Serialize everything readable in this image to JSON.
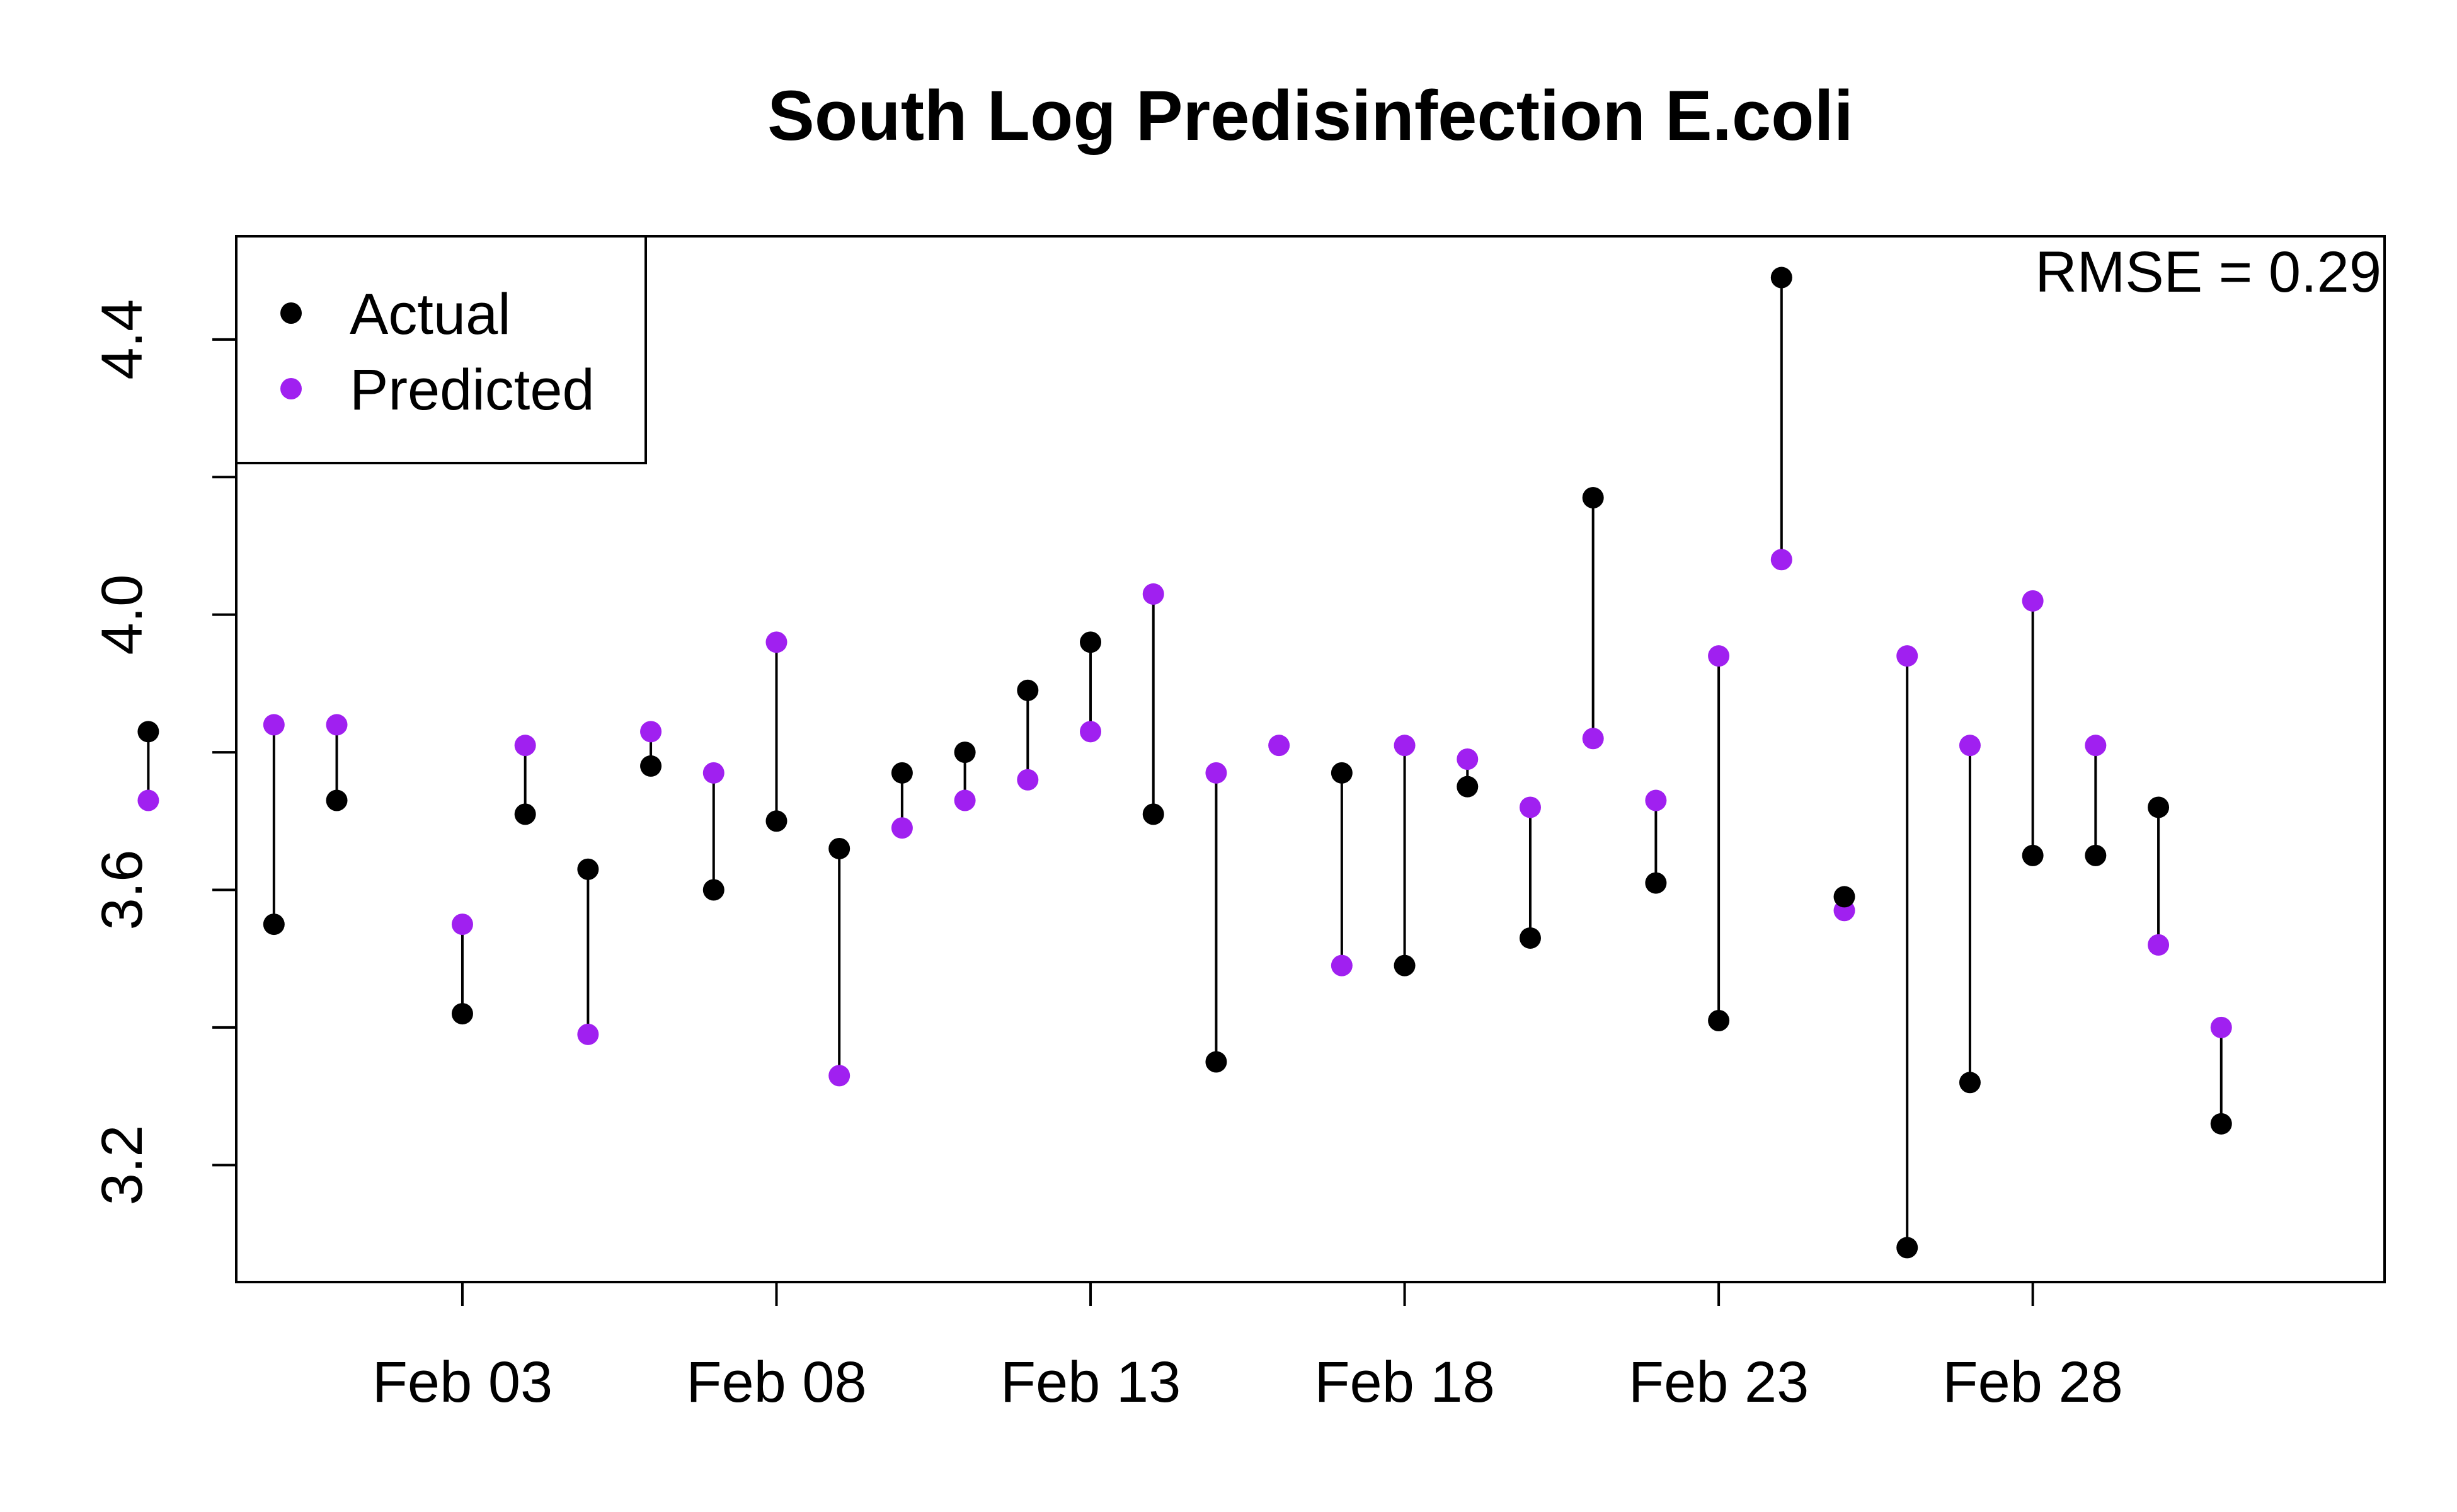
{
  "chart_data": {
    "type": "scatter",
    "title": "South Log Predisinfection E.coli",
    "xlabel": "",
    "ylabel": "",
    "x_ticks": [
      "Feb 03",
      "Feb 08",
      "Feb 13",
      "Feb 18",
      "Feb 23",
      "Feb 28"
    ],
    "x_tick_days": [
      3,
      8,
      13,
      18,
      23,
      28
    ],
    "xlim": [
      -0.6,
      33.6
    ],
    "y_ticks": [
      "3.2",
      "3.6",
      "4.0",
      "4.4"
    ],
    "y_tick_values": [
      3.2,
      3.6,
      4.0,
      4.4
    ],
    "ylim": [
      3.03,
      4.55
    ],
    "annotation": "RMSE = 0.29",
    "legend": {
      "position": "top-left",
      "entries": [
        "Actual",
        "Predicted"
      ]
    },
    "grid": false,
    "colors": {
      "actual": "#000000",
      "predicted": "#a020f0"
    },
    "series": [
      {
        "name": "Actual",
        "x": [
          -2,
          0,
          1,
          3,
          4,
          5,
          6,
          7,
          8,
          9,
          10,
          11,
          12,
          13,
          14,
          15,
          17,
          18,
          19,
          20,
          21,
          22,
          23,
          24,
          25,
          26,
          27,
          28,
          29,
          30,
          31
        ],
        "y": [
          3.83,
          3.55,
          3.73,
          3.42,
          3.71,
          3.63,
          3.78,
          3.6,
          3.7,
          3.66,
          3.77,
          3.8,
          3.89,
          3.96,
          3.71,
          3.35,
          3.77,
          3.49,
          3.75,
          3.53,
          4.17,
          3.61,
          3.41,
          4.49,
          3.59,
          3.08,
          3.32,
          3.65,
          3.65,
          3.72,
          3.26
        ]
      },
      {
        "name": "Predicted",
        "x": [
          -2,
          0,
          1,
          3,
          4,
          5,
          6,
          7,
          8,
          9,
          10,
          11,
          12,
          13,
          14,
          15,
          16,
          17,
          18,
          19,
          20,
          21,
          22,
          23,
          24,
          25,
          26,
          27,
          28,
          29,
          30,
          31
        ],
        "y": [
          3.73,
          3.84,
          3.84,
          3.55,
          3.81,
          3.39,
          3.83,
          3.77,
          3.96,
          3.33,
          3.69,
          3.73,
          3.76,
          3.83,
          4.03,
          3.77,
          3.81,
          3.49,
          3.81,
          3.79,
          3.72,
          3.82,
          3.73,
          3.94,
          4.08,
          3.57,
          3.94,
          3.81,
          4.02,
          3.81,
          3.52,
          3.4
        ]
      }
    ]
  }
}
